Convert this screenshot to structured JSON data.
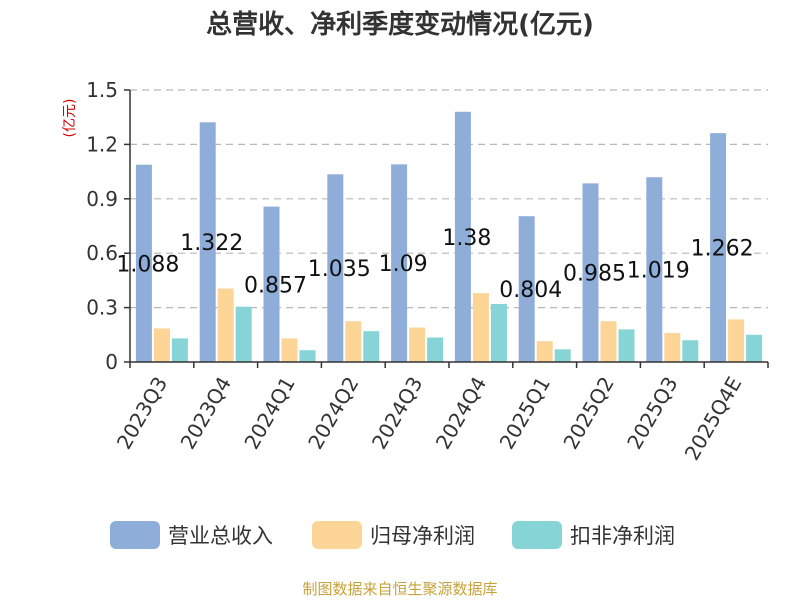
{
  "chart_data": {
    "type": "bar",
    "title": "总营收、净利季度变动情况(亿元)",
    "unit_label": "(亿元)",
    "categories": [
      "2023Q3",
      "2023Q4",
      "2024Q1",
      "2024Q2",
      "2024Q3",
      "2024Q4",
      "2025Q1",
      "2025Q2",
      "2025Q3",
      "2025Q4E"
    ],
    "series": [
      {
        "name": "营业总收入",
        "color": "#8eadd9",
        "values": [
          1.088,
          1.322,
          0.857,
          1.035,
          1.09,
          1.38,
          0.804,
          0.985,
          1.019,
          1.262
        ]
      },
      {
        "name": "归母净利润",
        "color": "#fdd597",
        "values": [
          0.185,
          0.405,
          0.13,
          0.225,
          0.19,
          0.38,
          0.115,
          0.225,
          0.16,
          0.235
        ]
      },
      {
        "name": "扣非净利润",
        "color": "#86d4d6",
        "values": [
          0.13,
          0.305,
          0.065,
          0.17,
          0.135,
          0.32,
          0.07,
          0.18,
          0.12,
          0.15
        ]
      }
    ],
    "data_labels": [
      "1.088",
      "1.322",
      "0.857",
      "1.035",
      "1.09",
      "1.38",
      "0.804",
      "0.985",
      "1.019",
      "1.262"
    ],
    "yticks": [
      "0",
      "0.3",
      "0.6",
      "0.9",
      "1.2",
      "1.5"
    ],
    "ylim": [
      0,
      1.5
    ],
    "grid": true,
    "legend_position": "bottom"
  },
  "source": "制图数据来自恒生聚源数据库"
}
